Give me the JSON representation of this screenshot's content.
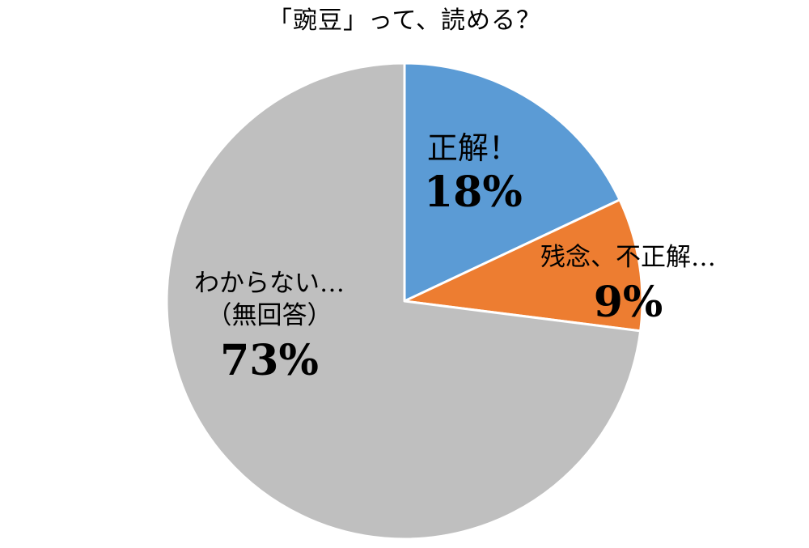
{
  "chart_data": {
    "type": "pie",
    "title": "「豌豆」って、読める？",
    "slices": [
      {
        "label": "正解！",
        "value": 18,
        "value_label": "18%",
        "color": "#5B9BD5"
      },
      {
        "label": "残念、不正解…",
        "value": 9,
        "value_label": "9%",
        "color": "#ED7D31"
      },
      {
        "label": "わからない…",
        "label_line2": "（無回答）",
        "value": 73,
        "value_label": "73%",
        "color": "#BFBFBF"
      }
    ],
    "start": "12 o'clock",
    "direction": "clockwise",
    "legend": "none"
  }
}
